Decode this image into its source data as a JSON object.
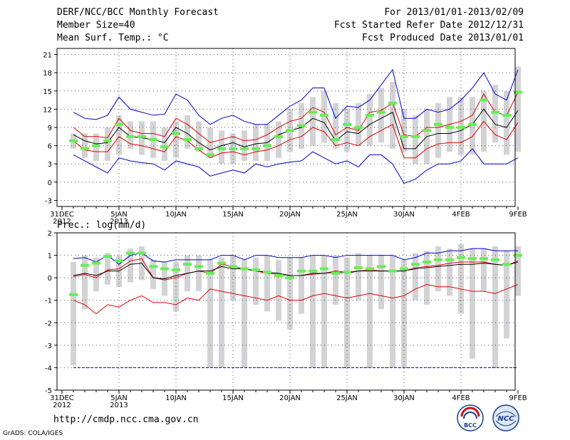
{
  "header": {
    "title": "DERF/NCC/BCC Monthly Forecast",
    "member_size": "Member Size=40",
    "variable": "Mean Surf. Temp.: °C",
    "period": "For 2013/01/01-2013/02/09",
    "refer_date": "Fcst Started Refer Date 2012/12/31",
    "produced_date": "Fcst Produced Date 2013/01/01"
  },
  "footer": {
    "url": "http://cmdp.ncc.cma.gov.cn",
    "credit": "GrADS: COLA/IGES",
    "logo_bcc": "BCC",
    "logo_ncc": "NCC"
  },
  "colors": {
    "max": "#0000cc",
    "upper": "#dd0000",
    "mean": "#000000",
    "marker": "#66ee55",
    "box": "#d3d3d5"
  },
  "chart_data": [
    {
      "type": "line",
      "title": "Mean Surf. Temp.: °C",
      "ylim": [
        -4,
        22
      ],
      "yticks": [
        -3,
        0,
        3,
        6,
        9,
        12,
        15,
        18,
        21
      ],
      "xticks": [
        {
          "day": 0,
          "label": "31DEC",
          "sub": "2012"
        },
        {
          "day": 5,
          "label": "5JAN",
          "sub": "2013"
        },
        {
          "day": 10,
          "label": "10JAN",
          "sub": ""
        },
        {
          "day": 15,
          "label": "15JAN",
          "sub": ""
        },
        {
          "day": 20,
          "label": "20JAN",
          "sub": ""
        },
        {
          "day": 25,
          "label": "25JAN",
          "sub": ""
        },
        {
          "day": 30,
          "label": "30JAN",
          "sub": ""
        },
        {
          "day": 35,
          "label": "4FEB",
          "sub": ""
        },
        {
          "day": 40,
          "label": "9FEB",
          "sub": ""
        }
      ],
      "days": [
        1,
        2,
        3,
        4,
        5,
        6,
        7,
        8,
        9,
        10,
        11,
        12,
        13,
        14,
        15,
        16,
        17,
        18,
        19,
        20,
        21,
        22,
        23,
        24,
        25,
        26,
        27,
        28,
        29,
        30,
        31,
        32,
        33,
        34,
        35,
        36,
        37,
        38,
        39,
        40
      ],
      "box_low": [
        5.5,
        4.0,
        3.5,
        3.5,
        4.5,
        5.5,
        4.5,
        4.0,
        3.5,
        4.0,
        5.5,
        5.0,
        4.0,
        3.0,
        3.0,
        3.5,
        3.5,
        3.5,
        4.0,
        5.0,
        5.5,
        6.0,
        6.5,
        5.5,
        5.0,
        6.0,
        6.0,
        6.5,
        5.5,
        5.0,
        3.0,
        3.0,
        4.0,
        5.0,
        4.5,
        4.5,
        5.0,
        6.5,
        4.5,
        5.0
      ],
      "box_high": [
        8.0,
        8.0,
        8.0,
        9.0,
        11.0,
        10.0,
        10.0,
        10.0,
        9.0,
        10.0,
        11.0,
        10.0,
        9.0,
        8.5,
        8.0,
        8.5,
        9.5,
        9.5,
        10.0,
        12.0,
        13.0,
        14.0,
        15.0,
        13.0,
        12.0,
        13.0,
        14.5,
        15.5,
        16.5,
        12.0,
        11.0,
        12.0,
        13.0,
        14.0,
        14.0,
        14.0,
        15.0,
        16.0,
        15.0,
        19.0
      ],
      "series": [
        {
          "name": "max",
          "values": [
            11.5,
            10.5,
            10.3,
            11.0,
            14.0,
            12.0,
            11.5,
            11.0,
            11.2,
            14.5,
            13.5,
            11.0,
            9.5,
            10.5,
            11.0,
            10.0,
            9.5,
            9.5,
            11.0,
            12.5,
            13.5,
            15.5,
            15.5,
            10.5,
            12.5,
            12.3,
            13.5,
            16.0,
            18.5,
            10.5,
            10.5,
            12.0,
            11.5,
            12.0,
            13.5,
            15.5,
            18.0,
            14.5,
            13.5,
            18.5
          ]
        },
        {
          "name": "upper",
          "values": [
            9.0,
            7.5,
            7.5,
            7.3,
            10.5,
            8.5,
            8.0,
            8.0,
            7.5,
            10.5,
            9.5,
            8.0,
            6.5,
            7.0,
            7.5,
            6.8,
            7.0,
            7.8,
            9.0,
            10.0,
            10.5,
            12.3,
            11.5,
            7.8,
            9.0,
            8.5,
            11.5,
            11.8,
            13.0,
            7.8,
            7.5,
            9.0,
            9.0,
            9.5,
            10.0,
            11.0,
            14.5,
            11.5,
            11.0,
            14.8
          ]
        },
        {
          "name": "mean",
          "values": [
            7.8,
            6.8,
            6.3,
            6.5,
            9.0,
            7.5,
            7.3,
            7.0,
            6.5,
            9.0,
            8.0,
            6.5,
            5.3,
            6.0,
            6.5,
            5.8,
            6.3,
            6.5,
            7.8,
            8.5,
            9.0,
            10.5,
            9.8,
            6.8,
            8.3,
            8.0,
            9.5,
            10.5,
            11.5,
            5.5,
            5.5,
            7.5,
            8.0,
            8.0,
            8.5,
            9.5,
            12.0,
            9.5,
            9.0,
            11.8
          ]
        },
        {
          "name": "lower",
          "values": [
            6.8,
            5.3,
            5.0,
            5.0,
            7.5,
            6.3,
            6.0,
            5.5,
            5.0,
            7.5,
            6.8,
            5.3,
            4.0,
            4.8,
            5.0,
            4.5,
            5.0,
            5.3,
            6.0,
            7.0,
            7.5,
            9.0,
            8.3,
            6.0,
            6.5,
            6.0,
            7.5,
            8.5,
            9.5,
            4.0,
            4.0,
            5.5,
            6.3,
            6.5,
            6.5,
            7.5,
            10.0,
            7.8,
            7.0,
            9.8
          ]
        },
        {
          "name": "min",
          "values": [
            4.5,
            3.5,
            2.5,
            1.5,
            4.0,
            3.5,
            3.2,
            3.0,
            2.0,
            3.5,
            3.0,
            2.5,
            1.0,
            1.5,
            2.0,
            1.5,
            3.0,
            2.5,
            3.0,
            3.3,
            3.5,
            5.0,
            4.0,
            3.0,
            3.5,
            2.5,
            4.5,
            4.5,
            3.0,
            -0.2,
            0.5,
            2.0,
            3.0,
            3.0,
            3.5,
            5.5,
            3.0,
            3.0,
            3.0,
            4.0
          ]
        }
      ],
      "marker": [
        6.8,
        5.5,
        6.0,
        6.8,
        9.5,
        7.5,
        7.5,
        7.0,
        5.8,
        8.0,
        7.0,
        5.5,
        4.5,
        5.5,
        5.5,
        5.5,
        5.5,
        6.0,
        7.5,
        8.5,
        9.3,
        11.5,
        11.0,
        7.0,
        9.5,
        9.0,
        11.0,
        11.5,
        13.0,
        7.5,
        7.5,
        8.5,
        9.5,
        9.0,
        9.0,
        9.5,
        13.5,
        11.5,
        11.0,
        14.8
      ]
    },
    {
      "type": "line",
      "title": "Prec.: log(mm/d)",
      "ylim": [
        -5,
        2
      ],
      "yticks": [
        -5,
        -4,
        -3,
        -2,
        -1,
        0,
        1,
        2
      ],
      "xticks": [
        {
          "day": 0,
          "label": "31DEC",
          "sub": "2012"
        },
        {
          "day": 5,
          "label": "5JAN",
          "sub": "2013"
        },
        {
          "day": 10,
          "label": "10JAN",
          "sub": ""
        },
        {
          "day": 15,
          "label": "15JAN",
          "sub": ""
        },
        {
          "day": 20,
          "label": "20JAN",
          "sub": ""
        },
        {
          "day": 25,
          "label": "25JAN",
          "sub": ""
        },
        {
          "day": 30,
          "label": "30JAN",
          "sub": ""
        },
        {
          "day": 35,
          "label": "4FEB",
          "sub": ""
        },
        {
          "day": 40,
          "label": "9FEB",
          "sub": ""
        }
      ],
      "days": [
        1,
        2,
        3,
        4,
        5,
        6,
        7,
        8,
        9,
        10,
        11,
        12,
        13,
        14,
        15,
        16,
        17,
        18,
        19,
        20,
        21,
        22,
        23,
        24,
        25,
        26,
        27,
        28,
        29,
        30,
        31,
        32,
        33,
        34,
        35,
        36,
        37,
        38,
        39,
        40
      ],
      "box_low": [
        -3.9,
        -1.4,
        -0.6,
        -0.3,
        -0.4,
        -0.2,
        -0.1,
        -0.5,
        -0.8,
        -1.5,
        -0.6,
        -0.6,
        -4.0,
        -4.0,
        -1.0,
        -4.0,
        -1.2,
        -1.5,
        -1.9,
        -2.3,
        -1.6,
        -4.0,
        -4.0,
        -1.2,
        -4.0,
        -1.0,
        -4.0,
        -1.4,
        -4.0,
        -4.0,
        -1.0,
        -1.2,
        -0.6,
        -0.8,
        -1.6,
        -3.6,
        -0.6,
        -4.0,
        -2.7,
        -0.8
      ],
      "box_high": [
        0.7,
        1.0,
        0.9,
        1.1,
        1.0,
        1.3,
        1.4,
        0.8,
        0.7,
        0.7,
        1.0,
        1.0,
        0.8,
        0.9,
        1.0,
        0.8,
        0.9,
        1.0,
        0.8,
        0.9,
        0.9,
        1.0,
        1.0,
        1.0,
        0.9,
        1.1,
        1.0,
        1.0,
        1.0,
        0.8,
        1.1,
        1.2,
        1.4,
        1.3,
        1.5,
        1.3,
        1.3,
        1.4,
        1.2,
        1.4
      ],
      "series": [
        {
          "name": "max",
          "values": [
            0.85,
            0.9,
            0.7,
            1.0,
            0.6,
            1.0,
            1.1,
            0.75,
            0.7,
            0.8,
            0.8,
            0.8,
            0.8,
            1.0,
            1.0,
            0.8,
            1.0,
            1.0,
            0.9,
            0.9,
            0.9,
            1.0,
            1.0,
            0.9,
            1.0,
            1.0,
            1.0,
            1.0,
            1.0,
            0.8,
            0.9,
            1.1,
            1.1,
            1.2,
            1.2,
            1.3,
            1.3,
            1.2,
            1.2,
            1.2
          ]
        },
        {
          "name": "upper",
          "values": [
            0.05,
            0.15,
            0.0,
            0.35,
            0.4,
            0.75,
            0.85,
            0.0,
            -0.1,
            0.0,
            0.2,
            0.3,
            0.2,
            0.6,
            0.5,
            0.4,
            0.3,
            0.2,
            0.15,
            0.1,
            0.1,
            0.15,
            0.2,
            0.3,
            0.25,
            0.3,
            0.35,
            0.3,
            0.3,
            0.3,
            0.45,
            0.5,
            0.55,
            0.65,
            0.7,
            0.7,
            0.7,
            0.6,
            0.55,
            0.75
          ]
        },
        {
          "name": "mean",
          "values": [
            0.1,
            0.2,
            0.1,
            0.3,
            0.3,
            0.6,
            0.65,
            0.0,
            -0.05,
            0.1,
            0.2,
            0.3,
            0.3,
            0.5,
            0.4,
            0.4,
            0.3,
            0.25,
            0.2,
            0.1,
            0.1,
            0.2,
            0.2,
            0.25,
            0.2,
            0.3,
            0.3,
            0.3,
            0.3,
            0.3,
            0.4,
            0.45,
            0.5,
            0.55,
            0.6,
            0.6,
            0.65,
            0.6,
            0.55,
            0.7
          ]
        },
        {
          "name": "lower",
          "values": [
            -1.0,
            -1.2,
            -1.6,
            -1.2,
            -1.3,
            -1.0,
            -0.8,
            -1.1,
            -1.1,
            -1.2,
            -0.9,
            -1.0,
            -0.5,
            -0.6,
            -0.7,
            -0.8,
            -0.9,
            -1.0,
            -0.8,
            -1.0,
            -1.0,
            -0.8,
            -0.7,
            -0.8,
            -0.9,
            -0.8,
            -0.7,
            -0.8,
            -0.9,
            -0.8,
            -0.5,
            -0.3,
            -0.4,
            -0.4,
            -0.5,
            -0.6,
            -0.6,
            -0.7,
            -0.5,
            -0.3
          ]
        },
        {
          "name": "min",
          "values": [
            -4.0,
            -4.0,
            -4.0,
            -4.0,
            -4.0,
            -4.0,
            -4.0,
            -4.0,
            -4.0,
            -4.0,
            -4.0,
            -4.0,
            -4.0,
            -4.0,
            -4.0,
            -4.0,
            -4.0,
            -4.0,
            -4.0,
            -4.0,
            -4.0,
            -4.0,
            -4.0,
            -4.0,
            -4.0,
            -4.0,
            -4.0,
            -4.0,
            -4.0,
            -4.0,
            -4.0,
            -4.0,
            -4.0,
            -4.0,
            -4.0,
            -4.0,
            -4.0,
            -4.0,
            -4.0,
            -4.0
          ]
        }
      ],
      "marker": [
        -0.75,
        0.55,
        0.65,
        0.95,
        0.75,
        1.1,
        1.1,
        0.5,
        0.4,
        0.35,
        0.6,
        0.5,
        0.2,
        0.65,
        0.5,
        0.4,
        0.35,
        0.25,
        0.1,
        0.0,
        0.3,
        0.3,
        0.4,
        0.2,
        0.25,
        0.45,
        0.4,
        0.5,
        0.3,
        0.4,
        0.6,
        0.7,
        0.8,
        0.8,
        0.9,
        0.85,
        0.85,
        0.8,
        0.6,
        1.0
      ]
    }
  ]
}
